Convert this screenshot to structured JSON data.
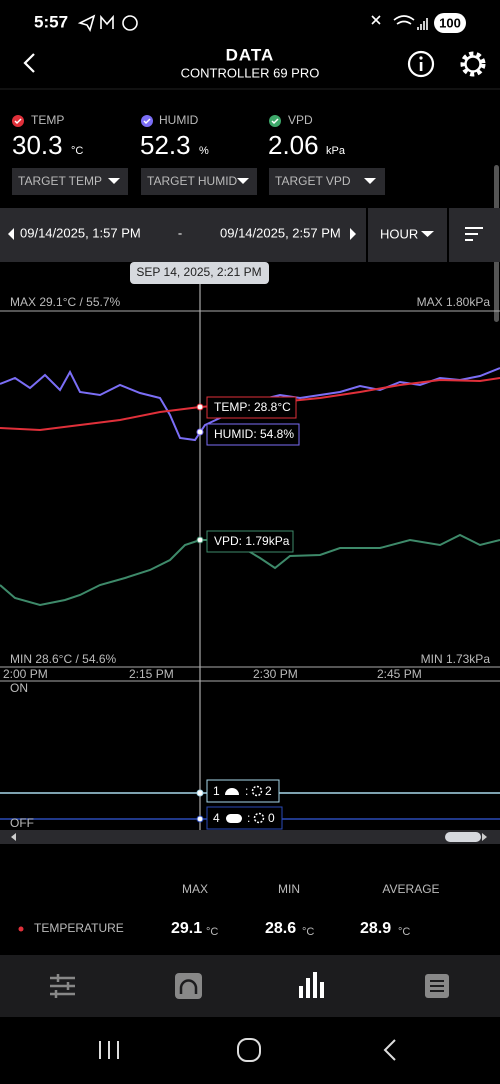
{
  "status_bar": {
    "time": "5:57",
    "battery": "100"
  },
  "header": {
    "title": "DATA",
    "subtitle": "CONTROLLER 69 PRO"
  },
  "sensors": [
    {
      "label": "TEMP",
      "value": "30.3",
      "unit": "°C",
      "target": "TARGET TEMP"
    },
    {
      "label": "HUMID",
      "value": "52.3",
      "unit": "%",
      "target": "TARGET HUMID"
    },
    {
      "label": "VPD",
      "value": "2.06",
      "unit": "kPa",
      "target": "TARGET VPD"
    }
  ],
  "date_range": {
    "start": "09/14/2025, 1:57 PM",
    "separator": "-",
    "end": "09/14/2025, 2:57 PM",
    "interval": "HOUR"
  },
  "chart": {
    "tooltip": "SEP 14, 2025, 2:21 PM",
    "max_left": "MAX 29.1°C / 55.7%",
    "max_right": "MAX 1.80kPa",
    "min_left": "MIN 28.6°C / 54.6%",
    "min_right": "MIN 1.73kPa",
    "x_labels": [
      "2:00 PM",
      "2:15 PM",
      "2:30 PM",
      "2:45 PM"
    ],
    "cursor_labels": [
      "TEMP: 28.8°C",
      "HUMID: 54.8%",
      "VPD: 1.79kPa"
    ],
    "state_on": "ON",
    "state_off": "OFF",
    "device_rows": [
      {
        "port": "1",
        "separator": ":",
        "value": "2"
      },
      {
        "port": "4",
        "separator": ":",
        "value": "0"
      }
    ]
  },
  "stats": {
    "headers": [
      "MAX",
      "MIN",
      "AVERAGE"
    ],
    "rows": [
      {
        "name": "TEMPERATURE",
        "max": "29.1",
        "min": "28.6",
        "average": "28.9",
        "unit": "°C"
      }
    ]
  }
}
